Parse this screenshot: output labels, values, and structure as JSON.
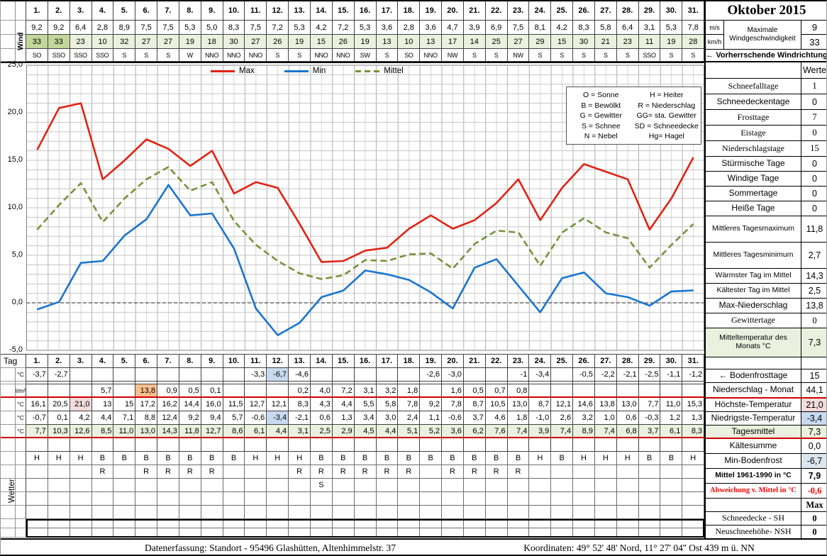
{
  "title": "Oktober 2015",
  "colors": {
    "green": "#ebf1de",
    "dgreen": "#c4d79b",
    "pink": "#f2dcdb",
    "blue": "#c9daf0",
    "lblue": "#dce6f1",
    "orange": "#fabf8f",
    "red_line": "#cf0000"
  },
  "days": [
    "1.",
    "2.",
    "3.",
    "4.",
    "5.",
    "6.",
    "7.",
    "8.",
    "9.",
    "10.",
    "11.",
    "12.",
    "13.",
    "14.",
    "15.",
    "16.",
    "17.",
    "18.",
    "19.",
    "20.",
    "21.",
    "22.",
    "23.",
    "24.",
    "25.",
    "26.",
    "27.",
    "28.",
    "29.",
    "30.",
    "31."
  ],
  "wind": {
    "label": "Wind",
    "unit_ms": "m/s",
    "unit_kmh": "km/h",
    "max_label": "Maximale Windgeschwindigkeit",
    "max_ms": "9",
    "max_kmh": "33",
    "dir_label": "←  Vorherrschende Windrichtung",
    "ms": [
      "9,2",
      "9,2",
      "6,4",
      "2,8",
      "8,9",
      "7,5",
      "7,5",
      "5,3",
      "5,0",
      "8,3",
      "7,5",
      "7,2",
      "5,3",
      "4,2",
      "7,2",
      "5,3",
      "3,6",
      "2,8",
      "3,6",
      "4,7",
      "3,9",
      "6,9",
      "7,5",
      "8,1",
      "4,2",
      "8,3",
      "5,8",
      "6,4",
      "3,1",
      "5,3",
      "7,8"
    ],
    "kmh": [
      "33",
      "33",
      "23",
      "10",
      "32",
      "27",
      "27",
      "19",
      "18",
      "30",
      "27",
      "26",
      "19",
      "15",
      "26",
      "19",
      "13",
      "10",
      "13",
      "17",
      "14",
      "25",
      "27",
      "29",
      "15",
      "30",
      "21",
      "23",
      "11",
      "19",
      "28"
    ],
    "kmh_highlights": {
      "0": "dgreen",
      "1": "dgreen"
    },
    "dir": [
      "SO",
      "SSO",
      "SSO",
      "SSO",
      "S",
      "S",
      "S",
      "W",
      "NNO",
      "NNO",
      "NNO",
      "S",
      "S",
      "NNO",
      "NNO",
      "SW",
      "S",
      "SO",
      "NNO",
      "NW",
      "S",
      "S",
      "NW",
      "S",
      "S",
      "S",
      "S",
      "S",
      "SSO",
      "S",
      "S"
    ]
  },
  "chart_data": {
    "type": "line",
    "x": [
      1,
      2,
      3,
      4,
      5,
      6,
      7,
      8,
      9,
      10,
      11,
      12,
      13,
      14,
      15,
      16,
      17,
      18,
      19,
      20,
      21,
      22,
      23,
      24,
      25,
      26,
      27,
      28,
      29,
      30,
      31
    ],
    "series": [
      {
        "name": "Max",
        "color": "#e02313",
        "style": "solid",
        "values": [
          16.1,
          20.5,
          21.0,
          13,
          15,
          17.2,
          16.2,
          14.4,
          16.0,
          11.5,
          12.7,
          12.1,
          8.3,
          4.3,
          4.4,
          5.5,
          5.8,
          7.8,
          9.2,
          7.8,
          8.7,
          10.5,
          13.0,
          8.7,
          12.1,
          14.6,
          13.8,
          13.0,
          7.7,
          11.0,
          15.3
        ]
      },
      {
        "name": "Min",
        "color": "#1a75cf",
        "style": "solid",
        "values": [
          -0.7,
          0.1,
          4.2,
          4.4,
          7.1,
          8.8,
          12.4,
          9.2,
          9.4,
          5.7,
          -0.6,
          -3.4,
          -2.1,
          0.6,
          1.3,
          3.4,
          3.0,
          2.4,
          1.1,
          -0.6,
          3.7,
          4.6,
          1.8,
          -1.0,
          2.6,
          3.2,
          1.0,
          0.6,
          -0.3,
          1.2,
          1.3
        ]
      },
      {
        "name": "Mittel",
        "color": "#77933c",
        "style": "dashed",
        "values": [
          7.7,
          10.3,
          12.6,
          8.5,
          11.0,
          13.0,
          14.3,
          11.8,
          12.7,
          8.6,
          6.1,
          4.4,
          3.1,
          2.5,
          2.9,
          4.5,
          4.4,
          5.1,
          5.2,
          3.6,
          6.2,
          7.6,
          7.4,
          3.9,
          7.4,
          8.9,
          7.4,
          6.8,
          3.7,
          6.1,
          8.3
        ]
      }
    ],
    "ylim": [
      -5,
      25
    ],
    "yticks": [
      "25,0",
      "20,0",
      "15,0",
      "10,0",
      "5,0",
      "0,0",
      "-5,0"
    ],
    "grid": "minor-gray, zero line dashed",
    "legend_position": "top-center"
  },
  "weather_legend": {
    "col1": [
      "O = Sonne",
      "B = Bewölkt",
      "G = Gewitter",
      "S = Schnee",
      "N = Nebel"
    ],
    "col2": [
      "H = Heiter",
      "R = Niederschlag",
      "GG= sta. Gewitter",
      "SD = Schneedecke",
      "Hg= Hagel"
    ]
  },
  "bottom": {
    "tag_label": "Tag",
    "wetter_label": "Wetter",
    "rows": [
      {
        "key": "bodenfrost",
        "unit": "°C",
        "values": [
          "-3,7",
          "-2,7",
          "",
          "",
          "",
          "",
          "",
          "",
          "",
          "",
          "-3,3",
          "-6,7",
          "-4,6",
          "",
          "",
          "",
          "",
          "",
          "-2,6",
          "-3,0",
          "",
          "",
          "-1",
          "-3,4",
          "",
          "-0,5",
          "-2,2",
          "-2,1",
          "-2,5",
          "-1,1",
          "-1,2"
        ],
        "highlights": {
          "11": "blue"
        }
      },
      {
        "key": "niederschlag",
        "unit": "l/m²",
        "values": [
          "",
          "",
          "",
          "5,7",
          "",
          "13,8",
          "0,9",
          "0,5",
          "0,1",
          "",
          "",
          "",
          "0,2",
          "4,0",
          "7,2",
          "3,1",
          "3,2",
          "1,8",
          "",
          "1,6",
          "0,5",
          "0,7",
          "0,8",
          "",
          "",
          "",
          "",
          "",
          "",
          "",
          ""
        ],
        "highlights": {
          "5": "orange"
        }
      },
      {
        "key": "hoechste",
        "unit": "°C",
        "values": [
          "16,1",
          "20,5",
          "21,0",
          "13",
          "15",
          "17,2",
          "16,2",
          "14,4",
          "16,0",
          "11,5",
          "12,7",
          "12,1",
          "8,3",
          "4,3",
          "4,4",
          "5,5",
          "5,8",
          "7,8",
          "9,2",
          "7,8",
          "8,7",
          "10,5",
          "13,0",
          "8,7",
          "12,1",
          "14,6",
          "13,8",
          "13,0",
          "7,7",
          "11,0",
          "15,3"
        ],
        "highlights": {
          "2": "pink"
        }
      },
      {
        "key": "niedrigste",
        "unit": "°C",
        "values": [
          "-0,7",
          "0,1",
          "4,2",
          "4,4",
          "7,1",
          "8,8",
          "12,4",
          "9,2",
          "9,4",
          "5,7",
          "-0,6",
          "-3,4",
          "-2,1",
          "0,6",
          "1,3",
          "3,4",
          "3,0",
          "2,4",
          "1,1",
          "-0,6",
          "3,7",
          "4,6",
          "1,8",
          "-1,0",
          "2,6",
          "3,2",
          "1,0",
          "0,6",
          "-0,3",
          "1,2",
          "1,3"
        ],
        "highlights": {
          "11": "blue"
        }
      },
      {
        "key": "tagesmittel",
        "unit": "°C",
        "row_bg": "green",
        "values": [
          "7,7",
          "10,3",
          "12,6",
          "8,5",
          "11,0",
          "13,0",
          "14,3",
          "11,8",
          "12,7",
          "8,6",
          "6,1",
          "4,4",
          "3,1",
          "2,5",
          "2,9",
          "4,5",
          "4,4",
          "5,1",
          "5,2",
          "3,6",
          "6,2",
          "7,6",
          "7,4",
          "3,9",
          "7,4",
          "8,9",
          "7,4",
          "6,8",
          "3,7",
          "6,1",
          "8,3"
        ]
      }
    ],
    "weather_rows": [
      [
        "H",
        "H",
        "H",
        "B",
        "B",
        "B",
        "B",
        "B",
        "B",
        "B",
        "H",
        "H",
        "H",
        "B",
        "B",
        "B",
        "B",
        "B",
        "B",
        "B",
        "B",
        "B",
        "B",
        "H",
        "B",
        "H",
        "H",
        "H",
        "B",
        "B",
        "H"
      ],
      [
        "",
        "",
        "",
        "R",
        "",
        "R",
        "R",
        "R",
        "R",
        "",
        "",
        "",
        "R",
        "R",
        "R",
        "R",
        "R",
        "R",
        "",
        "R",
        "R",
        "R",
        "R",
        "",
        "",
        "",
        "",
        "",
        "",
        "",
        ""
      ],
      [
        "",
        "",
        "",
        "",
        "",
        "",
        "",
        "",
        "",
        "",
        "",
        "",
        "",
        "S",
        "",
        "",
        "",
        "",
        "",
        "",
        "",
        "",
        "",
        "",
        "",
        "",
        "",
        "",
        "",
        "",
        ""
      ]
    ]
  },
  "stats": [
    {
      "label": "",
      "value": "Werte"
    },
    {
      "label": "Schneefalltage",
      "value": "1",
      "serif": true
    },
    {
      "label": "Schneedeckentage",
      "value": "0"
    },
    {
      "label": "Frosttage",
      "value": "7",
      "serif": true
    },
    {
      "label": "Eistage",
      "value": "0",
      "serif": true
    },
    {
      "label": "Niederschlagstage",
      "value": "15",
      "serif": true
    },
    {
      "label": "Stürmische Tage",
      "value": "0"
    },
    {
      "label": "Windige Tage",
      "value": "0"
    },
    {
      "label": "Sommertage",
      "value": "0"
    },
    {
      "label": "Heiße Tage",
      "value": "0"
    },
    {
      "label": "Mittleres Tagesmaximum",
      "value": "11,8"
    },
    {
      "label": "Mittleres Tagesminimum",
      "value": "2,7"
    },
    {
      "label": "Wärmster Tag im Mittel",
      "value": "14,3"
    },
    {
      "label": "Kältester Tag im Mittel",
      "value": "2,5"
    },
    {
      "label": "Max-Niederschlag",
      "value": "13,8"
    },
    {
      "label": "Gewittertage",
      "value": "0",
      "serif": true
    },
    {
      "label": "Mitteltemperatur des Monats °C",
      "value": "7,3",
      "label_bg": "green",
      "value_bg": "green"
    },
    {
      "label": "",
      "value": ""
    },
    {
      "label": "← Bodenfrosttage",
      "value": "15"
    },
    {
      "label": "Niederschlag - Monat",
      "value": "44,1",
      "redline": true
    },
    {
      "label": "Höchste-Temperatur",
      "value": "21,0",
      "value_bg": "pink"
    },
    {
      "label": "Niedrigste-Temperatur",
      "value": "-3,4",
      "value_bg": "blue"
    },
    {
      "label": "Tagesmittel",
      "value": "7,3",
      "label_bg": "green",
      "value_bg": "green",
      "redline": true
    },
    {
      "label": "Kältesumme",
      "value": "0,0"
    },
    {
      "label": "Min-Bodenfrost",
      "value": "-6,7",
      "value_bg": "lblue"
    },
    {
      "label": "Mittel 1961-1990 in °C",
      "value": "7,9",
      "bold": true
    },
    {
      "label": "Abweichung v. Mittel in °C",
      "value": "-0,6",
      "red": true,
      "serif": true,
      "bold": true
    },
    {
      "label": "",
      "value": "Max",
      "serif": true,
      "bold": true
    },
    {
      "label": "Schneedecke -   SH",
      "value": "0",
      "serif": true,
      "bold_value": true
    },
    {
      "label": "Neuschneehöhe- NSH",
      "value": "0",
      "serif": true,
      "bold_value": true
    }
  ],
  "footer": {
    "left": "Datenerfassung:  Standort -  95496  Glashütten, Altenhimmelstr. 37",
    "right": "Koordinaten:  49° 52' 48' Nord,   11° 27' 04'' Ost   439 m ü. NN"
  }
}
